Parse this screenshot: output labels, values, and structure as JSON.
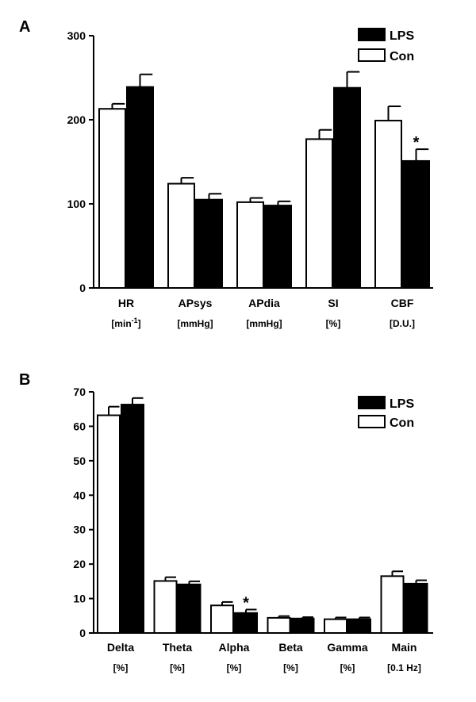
{
  "chart_data": [
    {
      "type": "bar",
      "panel": "A",
      "categories": [
        "HR",
        "APsys",
        "APdia",
        "SI",
        "CBF"
      ],
      "units": [
        "[min-1]",
        "[mmHg]",
        "[mmHg]",
        "[%]",
        "[D.U.]"
      ],
      "ylim": [
        0,
        300
      ],
      "yticks": [
        0,
        100,
        200,
        300
      ],
      "series": [
        {
          "name": "Con",
          "color": "#ffffff",
          "values": [
            213,
            124,
            102,
            177,
            199
          ],
          "errors": [
            6,
            7,
            5,
            11,
            17
          ]
        },
        {
          "name": "LPS",
          "color": "#000000",
          "values": [
            239,
            105,
            98,
            238,
            151
          ],
          "errors": [
            15,
            7,
            5,
            19,
            14
          ]
        }
      ],
      "legend_order": [
        "LPS",
        "Con"
      ],
      "legend_position": "top-right",
      "annotations": [
        {
          "category": "CBF",
          "series": "LPS",
          "text": "*"
        }
      ]
    },
    {
      "type": "bar",
      "panel": "B",
      "categories": [
        "Delta",
        "Theta",
        "Alpha",
        "Beta",
        "Gamma",
        "Main"
      ],
      "units": [
        "[%]",
        "[%]",
        "[%]",
        "[%]",
        "[%]",
        "[0.1 Hz]"
      ],
      "ylim": [
        0,
        70
      ],
      "yticks": [
        0,
        10,
        20,
        30,
        40,
        50,
        60,
        70
      ],
      "series": [
        {
          "name": "Con",
          "color": "#ffffff",
          "values": [
            63.2,
            15.1,
            8.0,
            4.4,
            4.0,
            16.5
          ],
          "errors": [
            2.5,
            1.1,
            1.0,
            0.5,
            0.5,
            1.4
          ]
        },
        {
          "name": "LPS",
          "color": "#000000",
          "values": [
            66.3,
            14.1,
            5.8,
            4.2,
            4.0,
            14.3
          ],
          "errors": [
            1.9,
            0.9,
            1.0,
            0.4,
            0.5,
            1.0
          ]
        }
      ],
      "legend_order": [
        "LPS",
        "Con"
      ],
      "legend_position": "top-right",
      "annotations": [
        {
          "category": "Alpha",
          "series": "LPS",
          "text": "*"
        }
      ]
    }
  ]
}
